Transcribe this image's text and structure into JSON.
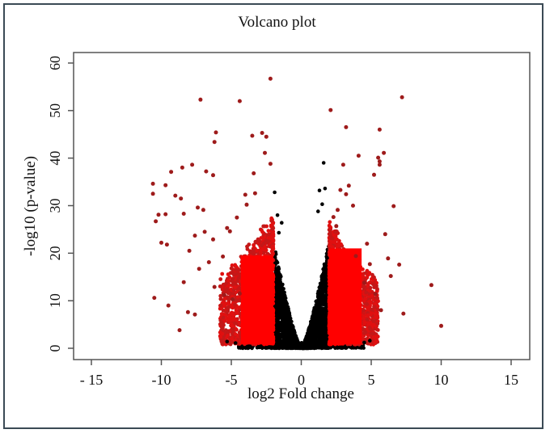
{
  "chart_data": {
    "type": "scatter",
    "title": "Volcano plot",
    "xlabel": "log2 Fold change",
    "ylabel": "-log10 (p-value)",
    "xlim": [
      -16.3,
      16.3
    ],
    "ylim": [
      -2.4,
      62.2
    ],
    "x_ticks": [
      -15,
      -10,
      -5,
      0,
      5,
      10,
      15
    ],
    "x_tick_labels": [
      "- 15",
      "-10",
      "-5",
      "0",
      "5",
      "10",
      "15"
    ],
    "y_ticks": [
      0,
      10,
      20,
      30,
      40,
      50,
      60
    ],
    "y_tick_labels": [
      "0",
      "10",
      "20",
      "30",
      "40",
      "50",
      "60"
    ],
    "grid": false,
    "legend": null,
    "colors": {
      "significant_outlier": "#9e1b1b",
      "significant_dense": "#ff0000",
      "not_significant": "#000000",
      "frame": "#555555",
      "outer_border": "#3b4a55"
    },
    "thresholds": {
      "log2fc": 2,
      "note": "points with |log2FC| >= 2 colored red"
    },
    "series": [
      {
        "name": "significant",
        "color": "#9e1b1b",
        "points": [
          [
            -2.2,
            56.7
          ],
          [
            -7.2,
            52.3
          ],
          [
            -4.4,
            52.0
          ],
          [
            -6.1,
            45.4
          ],
          [
            -6.2,
            43.4
          ],
          [
            -3.5,
            44.7
          ],
          [
            -2.8,
            45.3
          ],
          [
            -2.5,
            44.5
          ],
          [
            -2.6,
            41.1
          ],
          [
            -2.2,
            38.8
          ],
          [
            -3.4,
            36.8
          ],
          [
            -8.5,
            38.0
          ],
          [
            -7.8,
            38.6
          ],
          [
            -6.8,
            37.2
          ],
          [
            -6.3,
            36.4
          ],
          [
            -9.3,
            37.1
          ],
          [
            -9.7,
            34.3
          ],
          [
            -10.6,
            34.6
          ],
          [
            -10.6,
            32.5
          ],
          [
            -8.6,
            31.5
          ],
          [
            -9.0,
            32.1
          ],
          [
            -7.4,
            29.6
          ],
          [
            -7.0,
            29.1
          ],
          [
            -10.2,
            28.1
          ],
          [
            -10.4,
            26.7
          ],
          [
            -9.7,
            28.2
          ],
          [
            -8.4,
            28.3
          ],
          [
            -10.0,
            22.2
          ],
          [
            -9.6,
            21.8
          ],
          [
            -7.6,
            23.7
          ],
          [
            -6.9,
            24.5
          ],
          [
            -6.3,
            22.9
          ],
          [
            -5.3,
            25.3
          ],
          [
            -5.1,
            24.6
          ],
          [
            -10.5,
            10.6
          ],
          [
            -9.5,
            9.0
          ],
          [
            -8.1,
            7.6
          ],
          [
            -7.6,
            7.1
          ],
          [
            -8.7,
            3.8
          ],
          [
            -6.2,
            12.9
          ],
          [
            -5.5,
            11.2
          ],
          [
            -4.9,
            10.3
          ],
          [
            -4.4,
            11.5
          ],
          [
            -3.9,
            30.2
          ],
          [
            -4.0,
            32.3
          ],
          [
            -3.3,
            32.6
          ],
          [
            -4.6,
            27.5
          ],
          [
            -5.6,
            19.3
          ],
          [
            -6.6,
            18.1
          ],
          [
            -7.3,
            16.7
          ],
          [
            -8.0,
            20.5
          ],
          [
            -8.4,
            13.9
          ],
          [
            7.2,
            52.8
          ],
          [
            2.1,
            50.1
          ],
          [
            3.2,
            46.5
          ],
          [
            5.6,
            46.0
          ],
          [
            5.9,
            41.1
          ],
          [
            4.1,
            40.5
          ],
          [
            5.5,
            40.1
          ],
          [
            5.6,
            39.3
          ],
          [
            5.6,
            38.6
          ],
          [
            3.0,
            38.6
          ],
          [
            5.2,
            36.5
          ],
          [
            3.4,
            34.2
          ],
          [
            3.2,
            32.4
          ],
          [
            3.7,
            30.0
          ],
          [
            2.3,
            27.6
          ],
          [
            2.6,
            29.1
          ],
          [
            6.6,
            29.9
          ],
          [
            6.0,
            24.0
          ],
          [
            6.2,
            18.9
          ],
          [
            7.0,
            17.6
          ],
          [
            9.3,
            13.3
          ],
          [
            5.3,
            11.4
          ],
          [
            4.5,
            13.8
          ],
          [
            7.3,
            7.3
          ],
          [
            10.0,
            4.7
          ],
          [
            5.7,
            8.0
          ],
          [
            6.4,
            15.2
          ],
          [
            4.9,
            17.7
          ],
          [
            3.9,
            19.4
          ],
          [
            4.7,
            22.0
          ],
          [
            2.5,
            25.7
          ],
          [
            2.8,
            33.3
          ]
        ]
      }
    ],
    "dense_clouds": [
      {
        "name": "up_significant_cloud",
        "color": "#ff0000",
        "x_range": [
          2,
          5.5
        ],
        "y_max_at_edge": 22,
        "density": 1300
      },
      {
        "name": "down_significant_cloud",
        "color": "#ff0000",
        "x_range": [
          -5.8,
          -2
        ],
        "y_max_at_edge": 24,
        "density": 1400
      },
      {
        "name": "not_significant_cloud",
        "color": "#000000",
        "x_range": [
          -2,
          2
        ],
        "y_max_at_edge": 23,
        "density": 2400
      }
    ],
    "black_outliers": [
      [
        1.6,
        39.0
      ],
      [
        1.3,
        33.2
      ],
      [
        1.7,
        33.6
      ],
      [
        1.2,
        28.8
      ],
      [
        1.5,
        30.3
      ],
      [
        -1.9,
        32.8
      ],
      [
        -1.7,
        28.0
      ],
      [
        -1.4,
        26.4
      ],
      [
        -1.6,
        24.3
      ],
      [
        -5.3,
        1.4
      ],
      [
        4.9,
        1.6
      ],
      [
        4.5,
        1.2
      ],
      [
        -4.7,
        1.1
      ]
    ]
  }
}
